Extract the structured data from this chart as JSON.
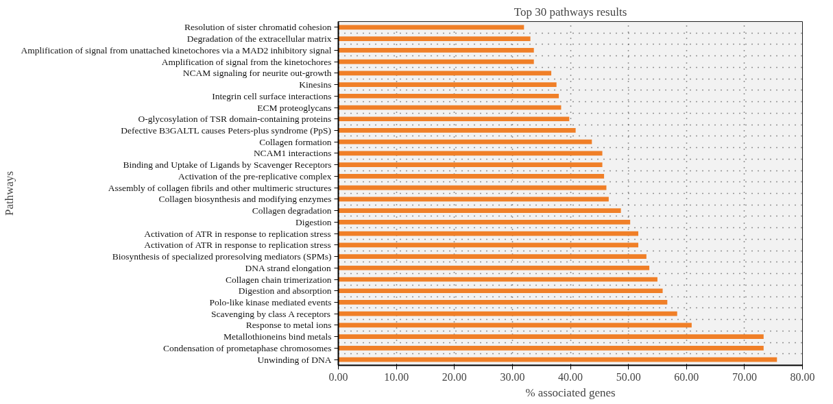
{
  "chart_data": {
    "type": "bar",
    "orientation": "horizontal",
    "title": "Top 30 pathways results",
    "xlabel": "% associated genes",
    "ylabel": "Pathways",
    "categories": [
      "Resolution of sister chromatid cohesion",
      "Degradation of the extracellular matrix",
      "Amplification of signal from unattached kinetochores via a MAD2 inhibitory signal",
      "Amplification of signal from the kinetochores",
      "NCAM signaling for neurite out-growth",
      "Kinesins",
      "Integrin cell surface interactions",
      "ECM proteoglycans",
      "O-glycosylation of TSR domain-containing proteins",
      "Defective B3GALTL causes Peters-plus syndrome (PpS)",
      "Collagen formation",
      "NCAM1 interactions",
      "Binding and Uptake of Ligands by Scavenger Receptors",
      "Activation of the pre-replicative complex",
      "Assembly of collagen fibrils and other multimeric structures",
      "Collagen biosynthesis and modifying enzymes",
      "Collagen degradation",
      "Digestion",
      "Activation of ATR in response to replication stress",
      "Activation of ATR in response to replication stress",
      "Biosynthesis of specialized proresolving mediators (SPMs)",
      "DNA strand elongation",
      "Collagen chain trimerization",
      "Digestion and absorption",
      "Polo-like kinase mediated events",
      "Scavenging by class A receptors",
      "Response to metal ions",
      "Metallothioneins bind metals",
      "Condensation of prometaphase chromosomes",
      "Unwinding of DNA"
    ],
    "values": [
      32.0,
      33.1,
      33.7,
      33.7,
      36.7,
      37.6,
      38.0,
      38.4,
      39.8,
      40.9,
      43.7,
      45.5,
      45.5,
      45.8,
      46.2,
      46.6,
      48.7,
      50.3,
      51.7,
      51.7,
      53.1,
      53.6,
      55.0,
      55.9,
      56.7,
      58.4,
      60.9,
      73.3,
      73.3,
      75.6
    ],
    "color": "#f07f27",
    "xlim": [
      0,
      80
    ],
    "xticks": [
      {
        "value": 0,
        "label": "0.00"
      },
      {
        "value": 10,
        "label": "10.00"
      },
      {
        "value": 20,
        "label": "20.00"
      },
      {
        "value": 30,
        "label": "30.00"
      },
      {
        "value": 40,
        "label": "40.00"
      },
      {
        "value": 50,
        "label": "50.00"
      },
      {
        "value": 60,
        "label": "60.00"
      },
      {
        "value": 70,
        "label": "70.00"
      },
      {
        "value": 80,
        "label": "80.00"
      }
    ],
    "grid": true
  }
}
